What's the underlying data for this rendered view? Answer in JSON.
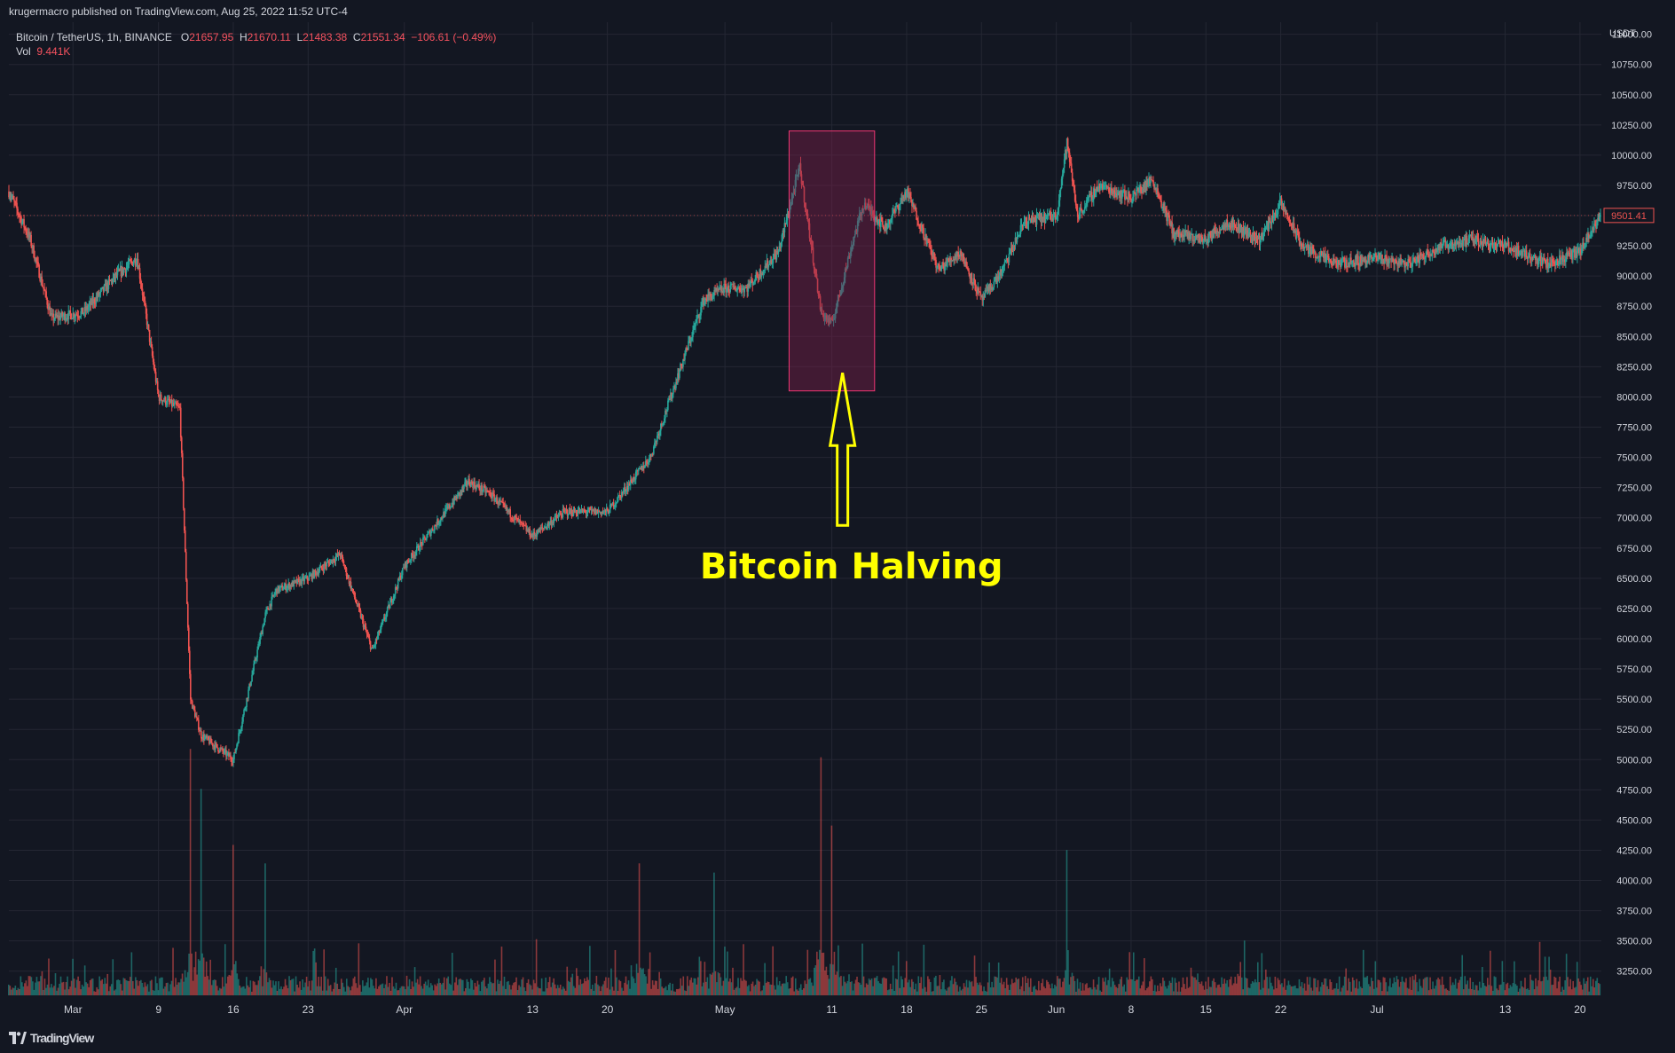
{
  "header": {
    "published_text": "krugermacro published on TradingView.com, Aug 25, 2022 11:52 UTC-4"
  },
  "legend": {
    "symbol": "Bitcoin / TetherUS, 1h, BINANCE",
    "o_label": "O",
    "o_value": "21657.95",
    "h_label": "H",
    "h_value": "21670.11",
    "l_label": "L",
    "l_value": "21483.38",
    "c_label": "C",
    "c_value": "21551.34",
    "change": "−106.61 (−0.49%)",
    "vol_label": "Vol",
    "vol_value": "9.441K"
  },
  "footer": {
    "logo_icon": "tradingview-logo-icon",
    "brand": "TradingView"
  },
  "colors": {
    "background": "#131722",
    "grid": "#242733",
    "up": "#26a69a",
    "down": "#ef5350",
    "highlight_fill": "#7a1e4a",
    "highlight_stroke": "#f23674",
    "annotation": "#ffff00"
  },
  "annotation": {
    "text": "Bitcoin Halving",
    "arrow_icon": "up-arrow-icon"
  },
  "chart_data": {
    "type": "candlestick",
    "currency": "USDT",
    "last_price_label": "9501.41",
    "ylim": [
      3050,
      11100
    ],
    "y_ticks": [
      3250,
      3500,
      3750,
      4000,
      4250,
      4500,
      4750,
      5000,
      5250,
      5500,
      5750,
      6000,
      6250,
      6500,
      6750,
      7000,
      7250,
      7500,
      7750,
      8000,
      8250,
      8500,
      8750,
      9000,
      9250,
      9500,
      9750,
      10000,
      10250,
      10500,
      10750,
      11000
    ],
    "y_tick_labels": [
      "3250.00",
      "3500.00",
      "3750.00",
      "4000.00",
      "4250.00",
      "4500.00",
      "4750.00",
      "5000.00",
      "5250.00",
      "5500.00",
      "5750.00",
      "6000.00",
      "6250.00",
      "6500.00",
      "6750.00",
      "7000.00",
      "7250.00",
      "7500.00",
      "7750.00",
      "8000.00",
      "8250.00",
      "8500.00",
      "8750.00",
      "9000.00",
      "9250.00",
      "9500.00",
      "9750.00",
      "10000.00",
      "10250.00",
      "10500.00",
      "10750.00",
      "11000.00"
    ],
    "x_range": [
      "2020-02-24",
      "2020-07-22"
    ],
    "x_tick_dates": [
      "2020-03-01",
      "2020-03-09",
      "2020-03-16",
      "2020-03-23",
      "2020-04-01",
      "2020-04-13",
      "2020-04-20",
      "2020-05-01",
      "2020-05-11",
      "2020-05-18",
      "2020-05-25",
      "2020-06-01",
      "2020-06-08",
      "2020-06-15",
      "2020-06-22",
      "2020-07-01",
      "2020-07-13",
      "2020-07-20"
    ],
    "x_tick_labels": [
      "Mar",
      "9",
      "16",
      "23",
      "Apr",
      "13",
      "20",
      "May",
      "11",
      "18",
      "25",
      "Jun",
      "8",
      "15",
      "22",
      "Jul",
      "13",
      "20"
    ],
    "price_path": [
      {
        "date": "2020-02-24",
        "price": 9700
      },
      {
        "date": "2020-02-26",
        "price": 9300
      },
      {
        "date": "2020-02-28",
        "price": 8650
      },
      {
        "date": "2020-03-02",
        "price": 8700
      },
      {
        "date": "2020-03-05",
        "price": 9000
      },
      {
        "date": "2020-03-07",
        "price": 9150
      },
      {
        "date": "2020-03-09",
        "price": 8000
      },
      {
        "date": "2020-03-11",
        "price": 7900
      },
      {
        "date": "2020-03-12",
        "price": 5500
      },
      {
        "date": "2020-03-13",
        "price": 5200
      },
      {
        "date": "2020-03-16",
        "price": 5000
      },
      {
        "date": "2020-03-19",
        "price": 6200
      },
      {
        "date": "2020-03-20",
        "price": 6400
      },
      {
        "date": "2020-03-23",
        "price": 6500
      },
      {
        "date": "2020-03-26",
        "price": 6700
      },
      {
        "date": "2020-03-29",
        "price": 5900
      },
      {
        "date": "2020-04-01",
        "price": 6600
      },
      {
        "date": "2020-04-07",
        "price": 7300
      },
      {
        "date": "2020-04-09",
        "price": 7200
      },
      {
        "date": "2020-04-13",
        "price": 6850
      },
      {
        "date": "2020-04-16",
        "price": 7050
      },
      {
        "date": "2020-04-20",
        "price": 7050
      },
      {
        "date": "2020-04-24",
        "price": 7500
      },
      {
        "date": "2020-04-29",
        "price": 8800
      },
      {
        "date": "2020-05-01",
        "price": 8900
      },
      {
        "date": "2020-05-03",
        "price": 8900
      },
      {
        "date": "2020-05-06",
        "price": 9200
      },
      {
        "date": "2020-05-08",
        "price": 9900
      },
      {
        "date": "2020-05-10",
        "price": 8700
      },
      {
        "date": "2020-05-11",
        "price": 8600
      },
      {
        "date": "2020-05-13",
        "price": 9300
      },
      {
        "date": "2020-05-14",
        "price": 9600
      },
      {
        "date": "2020-05-16",
        "price": 9400
      },
      {
        "date": "2020-05-18",
        "price": 9700
      },
      {
        "date": "2020-05-21",
        "price": 9050
      },
      {
        "date": "2020-05-23",
        "price": 9200
      },
      {
        "date": "2020-05-25",
        "price": 8800
      },
      {
        "date": "2020-05-27",
        "price": 9050
      },
      {
        "date": "2020-05-29",
        "price": 9450
      },
      {
        "date": "2020-06-01",
        "price": 9500
      },
      {
        "date": "2020-06-02",
        "price": 10100
      },
      {
        "date": "2020-06-03",
        "price": 9500
      },
      {
        "date": "2020-06-05",
        "price": 9750
      },
      {
        "date": "2020-06-08",
        "price": 9650
      },
      {
        "date": "2020-06-10",
        "price": 9800
      },
      {
        "date": "2020-06-12",
        "price": 9350
      },
      {
        "date": "2020-06-15",
        "price": 9300
      },
      {
        "date": "2020-06-17",
        "price": 9450
      },
      {
        "date": "2020-06-20",
        "price": 9300
      },
      {
        "date": "2020-06-22",
        "price": 9600
      },
      {
        "date": "2020-06-24",
        "price": 9250
      },
      {
        "date": "2020-06-27",
        "price": 9100
      },
      {
        "date": "2020-07-01",
        "price": 9150
      },
      {
        "date": "2020-07-04",
        "price": 9100
      },
      {
        "date": "2020-07-07",
        "price": 9250
      },
      {
        "date": "2020-07-10",
        "price": 9300
      },
      {
        "date": "2020-07-13",
        "price": 9250
      },
      {
        "date": "2020-07-17",
        "price": 9100
      },
      {
        "date": "2020-07-20",
        "price": 9200
      },
      {
        "date": "2020-07-22",
        "price": 9500
      }
    ],
    "highlight": {
      "x_start": "2020-05-07",
      "x_end": "2020-05-15",
      "y_low": 8050,
      "y_high": 10200
    },
    "volume_spikes": [
      {
        "date": "2020-03-12",
        "share": 1.0
      },
      {
        "date": "2020-03-13",
        "share": 0.85
      },
      {
        "date": "2020-03-16",
        "share": 0.6
      },
      {
        "date": "2020-03-19",
        "share": 0.55
      },
      {
        "date": "2020-05-10",
        "share": 0.97
      },
      {
        "date": "2020-05-11",
        "share": 0.7
      },
      {
        "date": "2020-04-30",
        "share": 0.5
      },
      {
        "date": "2020-06-02",
        "share": 0.6
      },
      {
        "date": "2020-04-23",
        "share": 0.55
      }
    ]
  }
}
